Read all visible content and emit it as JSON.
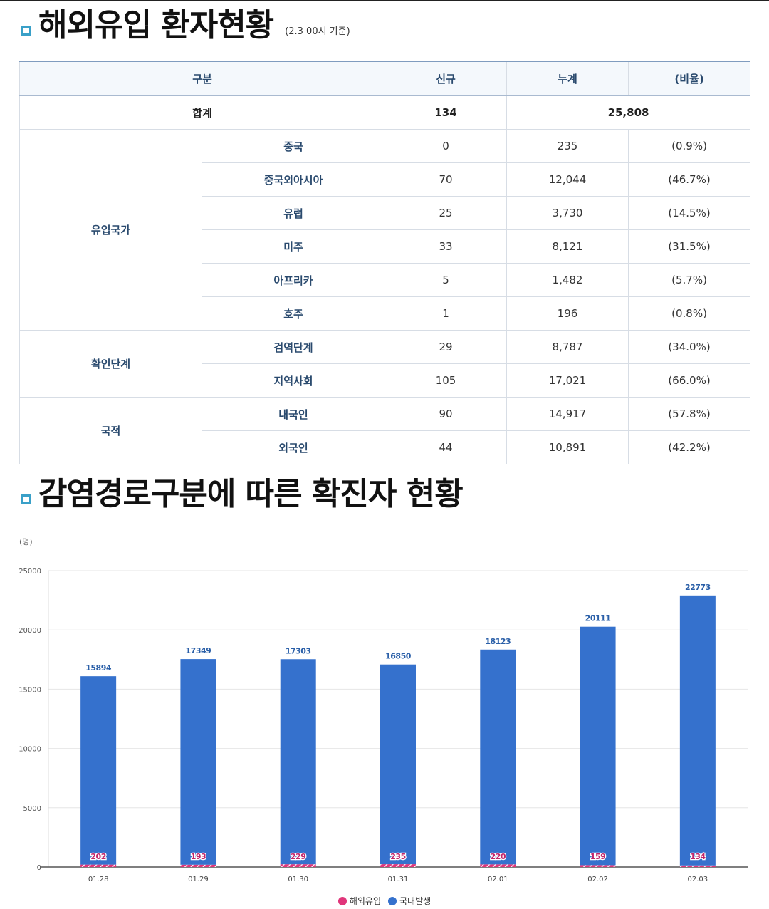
{
  "section1": {
    "title": "해외유입 환자현황",
    "note": "(2.3 00시 기준)"
  },
  "table": {
    "headers": [
      "구분",
      "신규",
      "누계",
      "(비율)"
    ],
    "total": {
      "label": "합계",
      "new": "134",
      "cumulative": "25,808"
    },
    "groups": [
      {
        "name": "유입국가",
        "rows": [
          {
            "label": "중국",
            "new": "0",
            "cumulative": "235",
            "ratio": "(0.9%)"
          },
          {
            "label": "중국외아시아",
            "new": "70",
            "cumulative": "12,044",
            "ratio": "(46.7%)"
          },
          {
            "label": "유럽",
            "new": "25",
            "cumulative": "3,730",
            "ratio": "(14.5%)"
          },
          {
            "label": "미주",
            "new": "33",
            "cumulative": "8,121",
            "ratio": "(31.5%)"
          },
          {
            "label": "아프리카",
            "new": "5",
            "cumulative": "1,482",
            "ratio": "(5.7%)"
          },
          {
            "label": "호주",
            "new": "1",
            "cumulative": "196",
            "ratio": "(0.8%)"
          }
        ]
      },
      {
        "name": "확인단계",
        "rows": [
          {
            "label": "검역단계",
            "new": "29",
            "cumulative": "8,787",
            "ratio": "(34.0%)"
          },
          {
            "label": "지역사회",
            "new": "105",
            "cumulative": "17,021",
            "ratio": "(66.0%)"
          }
        ]
      },
      {
        "name": "국적",
        "rows": [
          {
            "label": "내국인",
            "new": "90",
            "cumulative": "14,917",
            "ratio": "(57.8%)"
          },
          {
            "label": "외국인",
            "new": "44",
            "cumulative": "10,891",
            "ratio": "(42.2%)"
          }
        ]
      }
    ]
  },
  "section2": {
    "title": "감염경로구분에 따른 확진자 현황"
  },
  "chart_data": {
    "type": "bar",
    "stacked": true,
    "y_unit": "(명)",
    "categories": [
      "01.28",
      "01.29",
      "01.30",
      "01.31",
      "02.01",
      "02.02",
      "02.03"
    ],
    "series": [
      {
        "name": "해외유입",
        "values": [
          202,
          193,
          229,
          235,
          220,
          159,
          134
        ],
        "color": "#e0357a"
      },
      {
        "name": "국내발생",
        "values": [
          15894,
          17349,
          17303,
          16850,
          18123,
          20111,
          22773
        ],
        "color": "#3571cd"
      }
    ],
    "yticks": [
      0,
      5000,
      10000,
      15000,
      20000,
      25000
    ],
    "ylim": [
      0,
      25000
    ],
    "grid": true,
    "legend": "bottom-center"
  }
}
